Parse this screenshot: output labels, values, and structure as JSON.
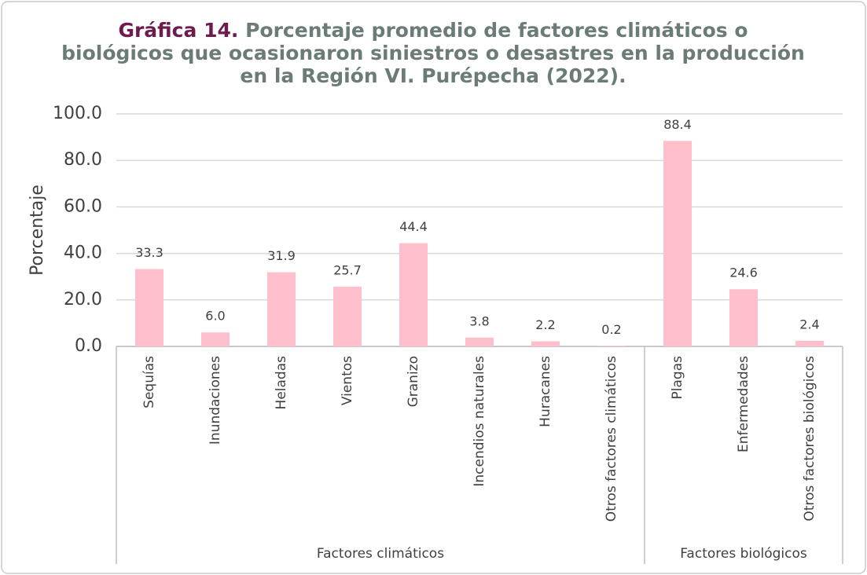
{
  "chart_data": {
    "type": "bar",
    "title_label": "Gráfica 14.",
    "title": [
      "Porcentaje promedio de factores climáticos o",
      "biológicos que ocasionaron siniestros o desastres en la producción",
      "en la Región VI. Purépecha (2022)."
    ],
    "y_label": "Porcentaje",
    "categories": [
      "Sequías",
      "Inundaciones",
      "Heladas",
      "Vientos",
      "Granizo",
      "Incendios naturales",
      "Huracanes",
      "Otros factores climáticos",
      "Plagas",
      "Enfermedades",
      "Otros factores biológicos"
    ],
    "groups": [
      {
        "name": "Factores climáticos",
        "size": 8
      },
      {
        "name": "Factores biológicos",
        "size": 3
      }
    ],
    "values": [
      33.3,
      6.0,
      31.9,
      25.7,
      44.4,
      3.8,
      2.2,
      0.2,
      88.4,
      24.6,
      2.4
    ],
    "value_labels": [
      "33.3",
      "6.0",
      "31.9",
      "25.7",
      "44.4",
      "3.8",
      "2.2",
      "0.2",
      "88.4",
      "24.6",
      "2.4"
    ],
    "color": "#ffc0cb",
    "ylim": [
      0,
      100
    ],
    "yticks": [
      {
        "value": 0,
        "label": "0.0"
      },
      {
        "value": 20,
        "label": "20.0"
      },
      {
        "value": 40,
        "label": "40.0"
      },
      {
        "value": 60,
        "label": "60.0"
      },
      {
        "value": 80,
        "label": "80.0"
      },
      {
        "value": 100,
        "label": "100.0"
      }
    ],
    "grid": true
  }
}
